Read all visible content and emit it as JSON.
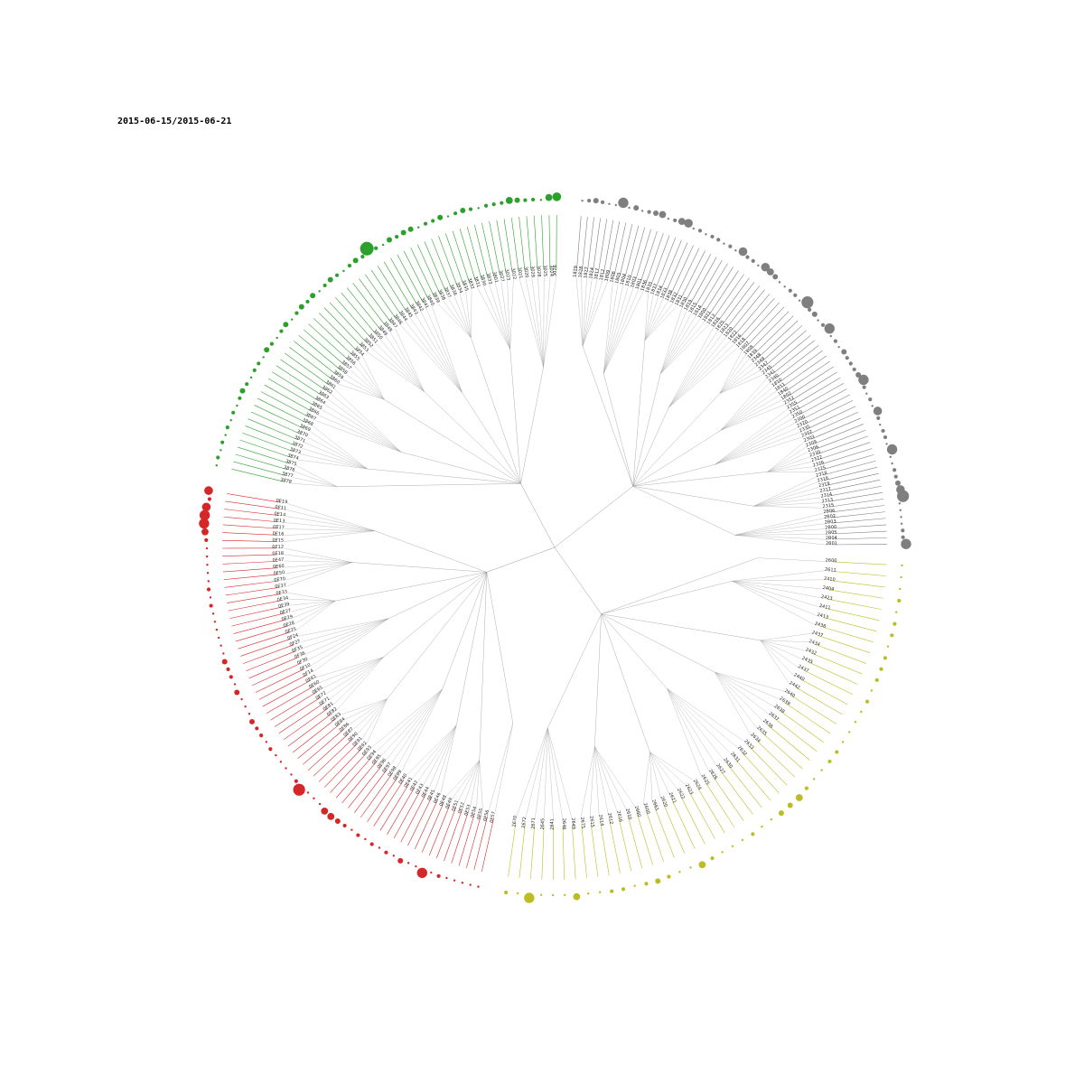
{
  "title": "2015-06-15/2015-06-21",
  "colors": {
    "gray": "#7f7f7f",
    "green": "#2ca02c",
    "olive": "#bcbd22",
    "red": "#d62728",
    "internal_edge": "#9a9a9a"
  },
  "clusters": [
    {
      "name": "gray",
      "color": "#7f7f7f",
      "leaves": [
        {
          "label": "2B01",
          "v": 5
        },
        {
          "label": "2B04",
          "v": 1
        },
        {
          "label": "2B05",
          "v": 1
        },
        {
          "label": "2B00",
          "v": 0
        },
        {
          "label": "2B03",
          "v": 0
        },
        {
          "label": "2B02",
          "v": 0
        },
        {
          "label": "2B06",
          "v": 0
        },
        {
          "label": "2315",
          "v": 6
        },
        {
          "label": "2313",
          "v": 4
        },
        {
          "label": "2314",
          "v": 2
        },
        {
          "label": "2317",
          "v": 1
        },
        {
          "label": "2319",
          "v": 1
        },
        {
          "label": "2316",
          "v": 0
        },
        {
          "label": "2318",
          "v": 0
        },
        {
          "label": "2325",
          "v": 5
        },
        {
          "label": "2326",
          "v": 0
        },
        {
          "label": "2322",
          "v": 1
        },
        {
          "label": "2330",
          "v": 1
        },
        {
          "label": "2306",
          "v": 0
        },
        {
          "label": "2309",
          "v": 1
        },
        {
          "label": "2303",
          "v": 4
        },
        {
          "label": "2302",
          "v": 0
        },
        {
          "label": "2335",
          "v": 1
        },
        {
          "label": "2320",
          "v": 0
        },
        {
          "label": "2300",
          "v": 1
        },
        {
          "label": "2350",
          "v": 5
        },
        {
          "label": "2351",
          "v": 2
        },
        {
          "label": "2355",
          "v": 1
        },
        {
          "label": "2352",
          "v": 1
        },
        {
          "label": "1802",
          "v": 1
        },
        {
          "label": "1840",
          "v": 2
        },
        {
          "label": "1811",
          "v": 0
        },
        {
          "label": "1810",
          "v": 1
        },
        {
          "label": "2340",
          "v": 0
        },
        {
          "label": "2341",
          "v": 5
        },
        {
          "label": "2345",
          "v": 1
        },
        {
          "label": "2347",
          "v": 0
        },
        {
          "label": "2349",
          "v": 2
        },
        {
          "label": "2348",
          "v": 1
        },
        {
          "label": "1839",
          "v": 6
        },
        {
          "label": "1808",
          "v": 0
        },
        {
          "label": "1807",
          "v": 1
        },
        {
          "label": "1818",
          "v": 1
        },
        {
          "label": "1816",
          "v": 0
        },
        {
          "label": "1822",
          "v": 0
        },
        {
          "label": "1820",
          "v": 2
        },
        {
          "label": "1823",
          "v": 3
        },
        {
          "label": "1825",
          "v": 4
        },
        {
          "label": "1826",
          "v": 0
        },
        {
          "label": "1813",
          "v": 1
        },
        {
          "label": "1821",
          "v": 1
        },
        {
          "label": "1800",
          "v": 4
        },
        {
          "label": "1814",
          "v": 0
        },
        {
          "label": "1815",
          "v": 1
        },
        {
          "label": "1819",
          "v": 0
        },
        {
          "label": "1830",
          "v": 1
        },
        {
          "label": "1831",
          "v": 1
        },
        {
          "label": "1832",
          "v": 0
        },
        {
          "label": "1838",
          "v": 1
        },
        {
          "label": "1833",
          "v": 0
        },
        {
          "label": "1834",
          "v": 4
        },
        {
          "label": "1837",
          "v": 3
        },
        {
          "label": "1835",
          "v": 1
        },
        {
          "label": "1836",
          "v": 0
        },
        {
          "label": "1801",
          "v": 3
        },
        {
          "label": "1803",
          "v": 2
        },
        {
          "label": "1810",
          "v": 1
        },
        {
          "label": "1804",
          "v": 0
        },
        {
          "label": "1805",
          "v": 2
        },
        {
          "label": "1806",
          "v": 0
        },
        {
          "label": "1809",
          "v": 5
        },
        {
          "label": "1812",
          "v": 0
        },
        {
          "label": "1817",
          "v": 0
        },
        {
          "label": "1824",
          "v": 1
        },
        {
          "label": "1827",
          "v": 2
        },
        {
          "label": "1828",
          "v": 1
        },
        {
          "label": "1829",
          "v": 0
        }
      ]
    },
    {
      "name": "green",
      "color": "#2ca02c",
      "leaves": [
        {
          "label": "3026",
          "v": 4
        },
        {
          "label": "3024",
          "v": 3
        },
        {
          "label": "3025",
          "v": 0
        },
        {
          "label": "3028",
          "v": 1
        },
        {
          "label": "3029",
          "v": 1
        },
        {
          "label": "3020",
          "v": 2
        },
        {
          "label": "3021",
          "v": 3
        },
        {
          "label": "3022",
          "v": 1
        },
        {
          "label": "3023",
          "v": 1
        },
        {
          "label": "3027",
          "v": 1
        },
        {
          "label": "3801",
          "v": 0
        },
        {
          "label": "3833",
          "v": 1
        },
        {
          "label": "3830",
          "v": 2
        },
        {
          "label": "3831",
          "v": 1
        },
        {
          "label": "3832",
          "v": 0
        },
        {
          "label": "3835",
          "v": 2
        },
        {
          "label": "3834",
          "v": 1
        },
        {
          "label": "3836",
          "v": 1
        },
        {
          "label": "3837",
          "v": 0
        },
        {
          "label": "3838",
          "v": 2
        },
        {
          "label": "3839",
          "v": 2
        },
        {
          "label": "3840",
          "v": 1
        },
        {
          "label": "3841",
          "v": 2
        },
        {
          "label": "3842",
          "v": 0
        },
        {
          "label": "3843",
          "v": 1
        },
        {
          "label": "3845",
          "v": 7
        },
        {
          "label": "3844",
          "v": 1
        },
        {
          "label": "3846",
          "v": 2
        },
        {
          "label": "3847",
          "v": 1
        },
        {
          "label": "3848",
          "v": 0
        },
        {
          "label": "3849",
          "v": 1
        },
        {
          "label": "3850",
          "v": 2
        },
        {
          "label": "3851",
          "v": 1
        },
        {
          "label": "3852",
          "v": 0
        },
        {
          "label": "3853",
          "v": 2
        },
        {
          "label": "3854",
          "v": 1
        },
        {
          "label": "3855",
          "v": 2
        },
        {
          "label": "3856",
          "v": 1
        },
        {
          "label": "3857",
          "v": 0
        },
        {
          "label": "3858",
          "v": 2
        },
        {
          "label": "3859",
          "v": 1
        },
        {
          "label": "3860",
          "v": 0
        },
        {
          "label": "3861",
          "v": 1
        },
        {
          "label": "3862",
          "v": 2
        },
        {
          "label": "3863",
          "v": 0
        },
        {
          "label": "3864",
          "v": 1
        },
        {
          "label": "3865",
          "v": 1
        },
        {
          "label": "3866",
          "v": 0
        },
        {
          "label": "3867",
          "v": 1
        },
        {
          "label": "3868",
          "v": 2
        },
        {
          "label": "3869",
          "v": 1
        },
        {
          "label": "3870",
          "v": 0
        },
        {
          "label": "3871",
          "v": 1
        },
        {
          "label": "3872",
          "v": 0
        },
        {
          "label": "3873",
          "v": 1
        },
        {
          "label": "3874",
          "v": 0
        },
        {
          "label": "3875",
          "v": 1
        },
        {
          "label": "3876",
          "v": 0
        },
        {
          "label": "3877",
          "v": 1
        },
        {
          "label": "3878",
          "v": 0
        }
      ]
    },
    {
      "name": "red",
      "color": "#d62728",
      "leaves": [
        {
          "label": "0E19",
          "v": 4
        },
        {
          "label": "0E11",
          "v": 1
        },
        {
          "label": "0E14",
          "v": 4
        },
        {
          "label": "0E13",
          "v": 5
        },
        {
          "label": "0E17",
          "v": 5
        },
        {
          "label": "0E16",
          "v": 3
        },
        {
          "label": "0E15",
          "v": 1
        },
        {
          "label": "0E12",
          "v": 0
        },
        {
          "label": "0E18",
          "v": 0
        },
        {
          "label": "0E47",
          "v": 0
        },
        {
          "label": "0E60",
          "v": 0
        },
        {
          "label": "0E50",
          "v": 0
        },
        {
          "label": "0E70",
          "v": 1
        },
        {
          "label": "0E37",
          "v": 0
        },
        {
          "label": "0E33",
          "v": 1
        },
        {
          "label": "0E34",
          "v": 0
        },
        {
          "label": "0E39",
          "v": 0
        },
        {
          "label": "0E27",
          "v": 0
        },
        {
          "label": "0E29",
          "v": 0
        },
        {
          "label": "0E28",
          "v": 0
        },
        {
          "label": "0E25",
          "v": 0
        },
        {
          "label": "0F24",
          "v": 2
        },
        {
          "label": "0F27",
          "v": 1
        },
        {
          "label": "0F35",
          "v": 1
        },
        {
          "label": "0F36",
          "v": 0
        },
        {
          "label": "0F30",
          "v": 2
        },
        {
          "label": "0F10",
          "v": 0
        },
        {
          "label": "0F14",
          "v": 0
        },
        {
          "label": "0E61",
          "v": 0
        },
        {
          "label": "0E60",
          "v": 2
        },
        {
          "label": "0E65",
          "v": 1
        },
        {
          "label": "0E72",
          "v": 1
        },
        {
          "label": "0E71",
          "v": 0
        },
        {
          "label": "0E81",
          "v": 1
        },
        {
          "label": "0E82",
          "v": 0
        },
        {
          "label": "0E83",
          "v": 0
        },
        {
          "label": "0E84",
          "v": 0
        },
        {
          "label": "0E86",
          "v": 0
        },
        {
          "label": "0E87",
          "v": 1
        },
        {
          "label": "0E90",
          "v": 6
        },
        {
          "label": "0E91",
          "v": 0
        },
        {
          "label": "0E92",
          "v": 0
        },
        {
          "label": "0E93",
          "v": 0
        },
        {
          "label": "0E94",
          "v": 3
        },
        {
          "label": "0E95",
          "v": 3
        },
        {
          "label": "0E96",
          "v": 2
        },
        {
          "label": "0E97",
          "v": 1
        },
        {
          "label": "0E98",
          "v": 0
        },
        {
          "label": "0E99",
          "v": 1
        },
        {
          "label": "0E40",
          "v": 0
        },
        {
          "label": "0E41",
          "v": 1
        },
        {
          "label": "0E42",
          "v": 0
        },
        {
          "label": "0E43",
          "v": 1
        },
        {
          "label": "0E44",
          "v": 0
        },
        {
          "label": "0E45",
          "v": 2
        },
        {
          "label": "0E46",
          "v": 0
        },
        {
          "label": "0E48",
          "v": 0
        },
        {
          "label": "0E49",
          "v": 5
        },
        {
          "label": "0E51",
          "v": 0
        },
        {
          "label": "0E52",
          "v": 1
        },
        {
          "label": "0E53",
          "v": 0
        },
        {
          "label": "0E54",
          "v": 0
        },
        {
          "label": "0E55",
          "v": 0
        },
        {
          "label": "0E56",
          "v": 0
        },
        {
          "label": "0E57",
          "v": 0
        }
      ]
    },
    {
      "name": "olive",
      "color": "#bcbd22",
      "leaves": [
        {
          "label": "2670",
          "v": 1
        },
        {
          "label": "2672",
          "v": 0
        },
        {
          "label": "2671",
          "v": 5
        },
        {
          "label": "2645",
          "v": 0
        },
        {
          "label": "2641",
          "v": 0
        },
        {
          "label": "2646",
          "v": 0
        },
        {
          "label": "2649",
          "v": 3
        },
        {
          "label": "2675",
          "v": 0
        },
        {
          "label": "2615",
          "v": 0
        },
        {
          "label": "2614",
          "v": 1
        },
        {
          "label": "2612",
          "v": 1
        },
        {
          "label": "2616",
          "v": 0
        },
        {
          "label": "2610",
          "v": 1
        },
        {
          "label": "2660",
          "v": 2
        },
        {
          "label": "2600",
          "v": 1
        },
        {
          "label": "2661",
          "v": 0
        },
        {
          "label": "2620",
          "v": 0
        },
        {
          "label": "2621",
          "v": 3
        },
        {
          "label": "2622",
          "v": 1
        },
        {
          "label": "2623",
          "v": 0
        },
        {
          "label": "2624",
          "v": 0
        },
        {
          "label": "2625",
          "v": 0
        },
        {
          "label": "2626",
          "v": 1
        },
        {
          "label": "2627",
          "v": 0
        },
        {
          "label": "2630",
          "v": 0
        },
        {
          "label": "2631",
          "v": 2
        },
        {
          "label": "2632",
          "v": 2
        },
        {
          "label": "2633",
          "v": 3
        },
        {
          "label": "2634",
          "v": 1
        },
        {
          "label": "2635",
          "v": 0
        },
        {
          "label": "2636",
          "v": 0
        },
        {
          "label": "2637",
          "v": 1
        },
        {
          "label": "2638",
          "v": 1
        },
        {
          "label": "2639",
          "v": 0
        },
        {
          "label": "2640",
          "v": 0
        },
        {
          "label": "2442",
          "v": 0
        },
        {
          "label": "2440",
          "v": 0
        },
        {
          "label": "2437",
          "v": 1
        },
        {
          "label": "2435",
          "v": 0
        },
        {
          "label": "2432",
          "v": 1
        },
        {
          "label": "2434",
          "v": 1
        },
        {
          "label": "2437",
          "v": 1
        },
        {
          "label": "2436",
          "v": 0
        },
        {
          "label": "2413",
          "v": 1
        },
        {
          "label": "2411",
          "v": 1
        },
        {
          "label": "2423",
          "v": 0
        },
        {
          "label": "2404",
          "v": 1
        },
        {
          "label": "2410",
          "v": 0
        },
        {
          "label": "2611",
          "v": 0
        },
        {
          "label": "2600",
          "v": 0
        }
      ]
    }
  ]
}
